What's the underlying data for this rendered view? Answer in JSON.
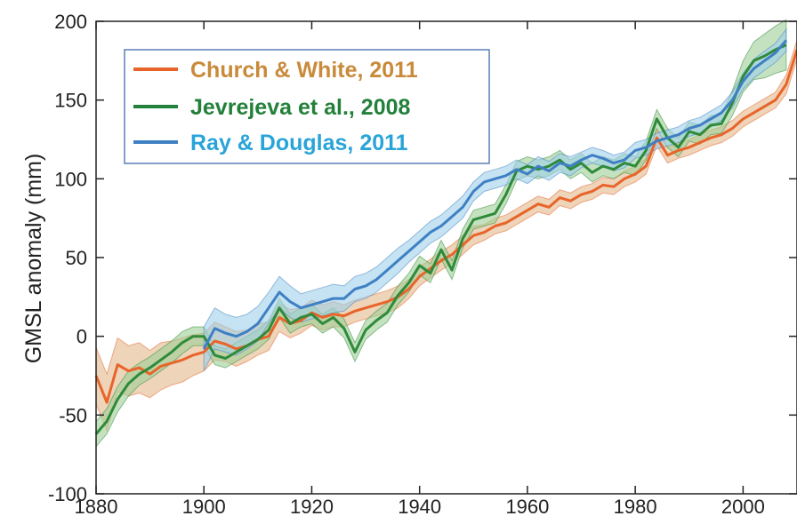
{
  "chart_data": {
    "type": "line",
    "xlabel": "",
    "ylabel": "GMSL anomaly (mm)",
    "xlim": [
      1880,
      2010
    ],
    "ylim": [
      -100,
      200
    ],
    "x_ticks": [
      "1880",
      "1900",
      "1920",
      "1940",
      "1960",
      "1980",
      "2000"
    ],
    "y_ticks": [
      "-100",
      "-50",
      "0",
      "50",
      "100",
      "150",
      "200"
    ],
    "grid": false,
    "legend_position": "top-left",
    "series": [
      {
        "name": "Church & White, 2011",
        "color": "#e8642a",
        "band_color": "#e3b78a",
        "legend_color": "#c98a3a",
        "x": [
          1880,
          1882,
          1884,
          1886,
          1888,
          1890,
          1892,
          1894,
          1896,
          1898,
          1900,
          1902,
          1904,
          1906,
          1908,
          1910,
          1912,
          1914,
          1916,
          1918,
          1920,
          1922,
          1924,
          1926,
          1928,
          1930,
          1932,
          1934,
          1936,
          1938,
          1940,
          1942,
          1944,
          1946,
          1948,
          1950,
          1952,
          1954,
          1956,
          1958,
          1960,
          1962,
          1964,
          1966,
          1968,
          1970,
          1972,
          1974,
          1976,
          1978,
          1980,
          1982,
          1984,
          1986,
          1988,
          1990,
          1992,
          1994,
          1996,
          1998,
          2000,
          2002,
          2004,
          2006,
          2008,
          2010
        ],
        "y": [
          -25,
          -42,
          -18,
          -22,
          -20,
          -24,
          -19,
          -17,
          -15,
          -12,
          -10,
          -3,
          -5,
          -8,
          -6,
          -2,
          0,
          12,
          8,
          10,
          15,
          12,
          14,
          13,
          16,
          18,
          20,
          22,
          25,
          30,
          38,
          43,
          48,
          52,
          58,
          64,
          66,
          70,
          72,
          76,
          80,
          84,
          82,
          88,
          86,
          90,
          92,
          96,
          95,
          100,
          103,
          108,
          126,
          115,
          118,
          120,
          123,
          126,
          128,
          132,
          138,
          142,
          146,
          150,
          160,
          182
        ],
        "err": [
          18,
          18,
          17,
          16,
          16,
          15,
          15,
          14,
          14,
          13,
          12,
          12,
          11,
          11,
          10,
          10,
          9,
          9,
          9,
          8,
          8,
          8,
          8,
          7,
          7,
          7,
          7,
          7,
          7,
          6,
          6,
          6,
          6,
          6,
          6,
          6,
          5,
          5,
          5,
          5,
          5,
          5,
          5,
          5,
          5,
          5,
          5,
          5,
          5,
          5,
          5,
          5,
          5,
          5,
          5,
          5,
          5,
          5,
          5,
          5,
          5,
          5,
          5,
          5,
          6,
          6
        ]
      },
      {
        "name": "Jevrejeva et al., 2008",
        "color": "#2f8a3a",
        "band_color": "#9fcf96",
        "legend_color": "#23803a",
        "x": [
          1880,
          1882,
          1884,
          1886,
          1888,
          1890,
          1892,
          1894,
          1896,
          1898,
          1900,
          1902,
          1904,
          1906,
          1908,
          1910,
          1912,
          1914,
          1916,
          1918,
          1920,
          1922,
          1924,
          1926,
          1928,
          1930,
          1932,
          1934,
          1936,
          1938,
          1940,
          1942,
          1944,
          1946,
          1948,
          1950,
          1952,
          1954,
          1956,
          1958,
          1960,
          1962,
          1964,
          1966,
          1968,
          1970,
          1972,
          1974,
          1976,
          1978,
          1980,
          1982,
          1984,
          1986,
          1988,
          1990,
          1992,
          1994,
          1996,
          1998,
          2000,
          2002,
          2004,
          2006,
          2008
        ],
        "y": [
          -62,
          -54,
          -40,
          -30,
          -24,
          -20,
          -15,
          -10,
          -4,
          0,
          0,
          -12,
          -14,
          -10,
          -6,
          -2,
          4,
          18,
          8,
          12,
          14,
          8,
          12,
          5,
          -10,
          4,
          10,
          15,
          26,
          34,
          45,
          40,
          55,
          42,
          62,
          74,
          76,
          78,
          90,
          105,
          108,
          106,
          108,
          112,
          106,
          110,
          104,
          108,
          106,
          110,
          108,
          118,
          138,
          126,
          120,
          130,
          128,
          134,
          135,
          148,
          165,
          175,
          178,
          182,
          185
        ],
        "err": [
          8,
          8,
          8,
          8,
          7,
          7,
          7,
          7,
          7,
          6,
          6,
          6,
          6,
          6,
          6,
          6,
          6,
          6,
          6,
          6,
          6,
          6,
          6,
          6,
          6,
          6,
          6,
          6,
          6,
          6,
          6,
          6,
          6,
          6,
          6,
          6,
          6,
          6,
          6,
          6,
          6,
          6,
          6,
          6,
          6,
          6,
          6,
          6,
          6,
          6,
          6,
          6,
          6,
          6,
          6,
          6,
          6,
          6,
          6,
          8,
          10,
          12,
          14,
          15,
          16
        ]
      },
      {
        "name": "Ray & Douglas, 2011",
        "color": "#3f7fc4",
        "band_color": "#9fd0ea",
        "legend_color": "#29a4d8",
        "x": [
          1900,
          1902,
          1904,
          1906,
          1908,
          1910,
          1912,
          1914,
          1916,
          1918,
          1920,
          1922,
          1924,
          1926,
          1928,
          1930,
          1932,
          1934,
          1936,
          1938,
          1940,
          1942,
          1944,
          1946,
          1948,
          1950,
          1952,
          1954,
          1956,
          1958,
          1960,
          1962,
          1964,
          1966,
          1968,
          1970,
          1972,
          1974,
          1976,
          1978,
          1980,
          1982,
          1984,
          1986,
          1988,
          1990,
          1992,
          1994,
          1996,
          1998,
          2000,
          2002,
          2004,
          2006,
          2008
        ],
        "y": [
          -8,
          5,
          2,
          0,
          3,
          8,
          18,
          28,
          22,
          18,
          20,
          22,
          24,
          24,
          30,
          32,
          36,
          42,
          48,
          54,
          60,
          66,
          70,
          76,
          82,
          92,
          98,
          100,
          102,
          106,
          103,
          108,
          105,
          110,
          108,
          112,
          115,
          113,
          110,
          112,
          118,
          120,
          124,
          126,
          128,
          132,
          134,
          138,
          142,
          150,
          162,
          170,
          175,
          180,
          188
        ],
        "err": [
          14,
          13,
          12,
          12,
          11,
          11,
          10,
          10,
          10,
          9,
          9,
          9,
          9,
          8,
          8,
          8,
          8,
          8,
          8,
          7,
          7,
          7,
          7,
          7,
          7,
          6,
          6,
          6,
          6,
          6,
          6,
          6,
          6,
          6,
          6,
          5,
          5,
          5,
          5,
          5,
          5,
          5,
          5,
          5,
          5,
          5,
          5,
          5,
          5,
          5,
          5,
          6,
          6,
          6,
          7
        ]
      }
    ]
  }
}
